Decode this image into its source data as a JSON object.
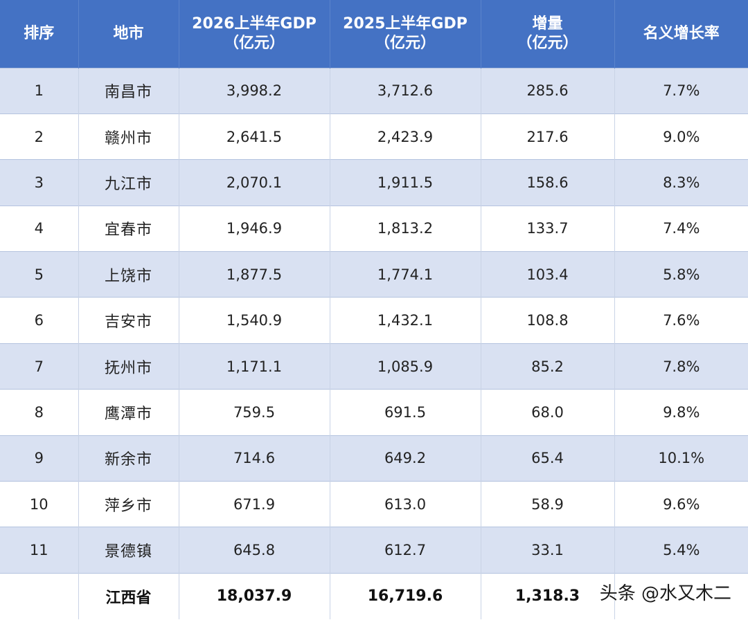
{
  "header": {
    "rank": "排序",
    "city": "地市",
    "gdp2026_l1": "2026上半年GDP",
    "gdp2026_l2": "（亿元）",
    "gdp2025_l1": "2025上半年GDP",
    "gdp2025_l2": "（亿元）",
    "increase_l1": "增量",
    "increase_l2": "（亿元）",
    "growth": "名义增长率"
  },
  "rows": [
    {
      "rank": "1",
      "city": "南昌市",
      "gdp2026": "3,998.2",
      "gdp2025": "3,712.6",
      "increase": "285.6",
      "growth": "7.7%"
    },
    {
      "rank": "2",
      "city": "赣州市",
      "gdp2026": "2,641.5",
      "gdp2025": "2,423.9",
      "increase": "217.6",
      "growth": "9.0%"
    },
    {
      "rank": "3",
      "city": "九江市",
      "gdp2026": "2,070.1",
      "gdp2025": "1,911.5",
      "increase": "158.6",
      "growth": "8.3%"
    },
    {
      "rank": "4",
      "city": "宜春市",
      "gdp2026": "1,946.9",
      "gdp2025": "1,813.2",
      "increase": "133.7",
      "growth": "7.4%"
    },
    {
      "rank": "5",
      "city": "上饶市",
      "gdp2026": "1,877.5",
      "gdp2025": "1,774.1",
      "increase": "103.4",
      "growth": "5.8%"
    },
    {
      "rank": "6",
      "city": "吉安市",
      "gdp2026": "1,540.9",
      "gdp2025": "1,432.1",
      "increase": "108.8",
      "growth": "7.6%"
    },
    {
      "rank": "7",
      "city": "抚州市",
      "gdp2026": "1,171.1",
      "gdp2025": "1,085.9",
      "increase": "85.2",
      "growth": "7.8%"
    },
    {
      "rank": "8",
      "city": "鹰潭市",
      "gdp2026": "759.5",
      "gdp2025": "691.5",
      "increase": "68.0",
      "growth": "9.8%"
    },
    {
      "rank": "9",
      "city": "新余市",
      "gdp2026": "714.6",
      "gdp2025": "649.2",
      "increase": "65.4",
      "growth": "10.1%"
    },
    {
      "rank": "10",
      "city": "萍乡市",
      "gdp2026": "671.9",
      "gdp2025": "613.0",
      "increase": "58.9",
      "growth": "9.6%"
    },
    {
      "rank": "11",
      "city": "景德镇",
      "gdp2026": "645.8",
      "gdp2025": "612.7",
      "increase": "33.1",
      "growth": "5.4%"
    }
  ],
  "total": {
    "rank": "",
    "city": "江西省",
    "gdp2026": "18,037.9",
    "gdp2025": "16,719.6",
    "increase": "1,318.3",
    "growth": ""
  },
  "watermark": "头条 @水又木二",
  "colors": {
    "header_bg": "#4472c4",
    "band_bg": "#d9e1f2",
    "header_text": "#ffffff"
  }
}
